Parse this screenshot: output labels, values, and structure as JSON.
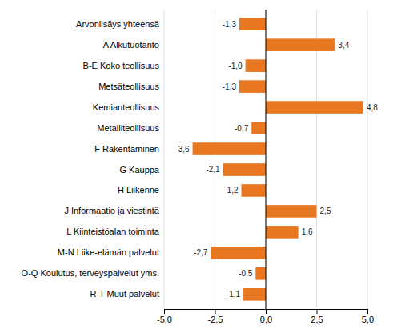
{
  "chart_data": {
    "type": "bar",
    "orientation": "horizontal",
    "categories": [
      "R-T Muut palvelut",
      "O-Q Koulutus, terveyspalvelut yms.",
      "M-N Liike-elämän palvelut",
      "L Kiinteistöalan toiminta",
      "J Informaatio ja viestintä",
      "H Liikenne",
      "G Kauppa",
      "F Rakentaminen",
      "Metalliteollisuus",
      "Kemianteollisuus",
      "Metsäteollisuus",
      "B-E Koko teollisuus",
      "A Alkutuotanto",
      "Arvonlisäys yhteensä"
    ],
    "values": [
      -1.1,
      -0.5,
      -2.7,
      1.6,
      2.5,
      -1.2,
      -2.1,
      -3.6,
      -0.7,
      4.8,
      -1.3,
      -1.0,
      3.4,
      -1.3
    ],
    "value_labels": [
      "-1,1",
      "-0,5",
      "-2,7",
      "1,6",
      "2,5",
      "-1,2",
      "-2,1",
      "-3,6",
      "-0,7",
      "4,8",
      "-1,3",
      "-1,0",
      "3,4",
      "-1,3"
    ],
    "data_labels": true,
    "color": "#E87722",
    "xlim": [
      -5.0,
      5.0
    ],
    "xticks": [
      {
        "value": -5.0,
        "label": "-5,0"
      },
      {
        "value": -2.5,
        "label": "-2,5"
      },
      {
        "value": 0.0,
        "label": "0,0"
      },
      {
        "value": 2.5,
        "label": "2,5"
      },
      {
        "value": 5.0,
        "label": "5,0"
      }
    ],
    "grid": true
  }
}
